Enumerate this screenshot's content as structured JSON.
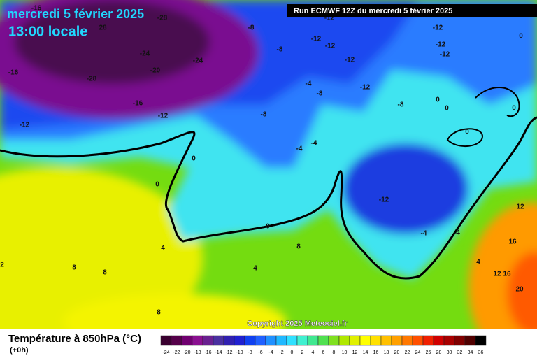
{
  "header": {
    "title": "mercredi 5 février 2025",
    "time": "13:00 locale",
    "run": "Run ECMWF 12Z du mercredi 5 février 2025"
  },
  "map": {
    "labels": [
      "-28",
      "-16",
      "28",
      "-24",
      "-24",
      "-20",
      "-16",
      "-28",
      "-16",
      "-12",
      "-12",
      "-8",
      "-8",
      "-12",
      "-12",
      "-12",
      "-12",
      "-12",
      "-12",
      "-12",
      "-8",
      "-8",
      "-4",
      "-8",
      "0",
      "0",
      "0",
      "0",
      "0",
      "-4",
      "-4",
      "0",
      "0",
      "-12",
      "0",
      "-4",
      "4",
      "12",
      "16",
      "12",
      "16",
      "20",
      "4",
      "8",
      "4",
      "8",
      "8",
      "8",
      "2",
      "4",
      "-12"
    ]
  },
  "legend": {
    "title": "Température à 850hPa (°C)",
    "step": "(+0h)",
    "ticks": [
      -24,
      -22,
      -20,
      -18,
      -16,
      -14,
      -12,
      -10,
      -8,
      -6,
      -4,
      -2,
      0,
      2,
      4,
      6,
      8,
      10,
      12,
      14,
      16,
      18,
      20,
      22,
      24,
      26,
      28,
      30,
      32,
      34,
      36
    ],
    "colors": [
      "#3a0030",
      "#55004a",
      "#700070",
      "#8a1090",
      "#6a2090",
      "#4a30a0",
      "#3020b0",
      "#2020d0",
      "#1040f0",
      "#2060ff",
      "#2090ff",
      "#20b8ff",
      "#30e0ff",
      "#40f0d0",
      "#40e890",
      "#50e050",
      "#80e020",
      "#b0e800",
      "#e0f000",
      "#ffff00",
      "#ffe000",
      "#ffc000",
      "#ffa000",
      "#ff7800",
      "#ff5000",
      "#f02000",
      "#d00000",
      "#a80000",
      "#800000",
      "#500000",
      "#000000"
    ]
  },
  "footer": {
    "copyright": "Copyright 2025 Meteociel.fr"
  }
}
